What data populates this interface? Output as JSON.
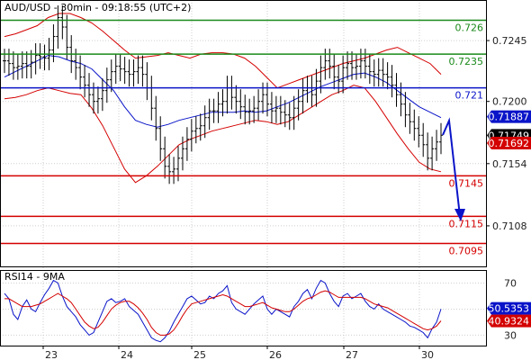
{
  "chart_data": [
    {
      "type": "candlestick",
      "title": "AUD/USD - 30min - 09:18:55 (UTC+2)",
      "ylim": [
        0.7078,
        0.7275
      ],
      "x_ticks": [
        "23",
        "24",
        "25",
        "26",
        "27",
        "30"
      ],
      "y_ticks": [
        "0.7245",
        "0.7200",
        "0.7154",
        "0.7108"
      ],
      "grid": true,
      "levels": [
        {
          "label": "0.726",
          "value": 0.726,
          "color": "#1a8a1a"
        },
        {
          "label": "0.7235",
          "value": 0.7235,
          "color": "#1a8a1a"
        },
        {
          "label": "0.721",
          "value": 0.721,
          "color": "#0a14c8"
        },
        {
          "label": "0.7145",
          "value": 0.7145,
          "color": "#d40000"
        },
        {
          "label": "0.7115",
          "value": 0.7115,
          "color": "#d40000"
        },
        {
          "label": "0.7095",
          "value": 0.7095,
          "color": "#d40000"
        }
      ],
      "price_tags": [
        {
          "label": "0.71887",
          "value": 0.71887,
          "color": "#0a14c8"
        },
        {
          "label": "0.71749",
          "value": 0.71749,
          "color": "#000000"
        },
        {
          "label": "0.71692",
          "value": 0.71692,
          "color": "#d40000"
        }
      ],
      "close": [
        0.723,
        0.7228,
        0.7225,
        0.7226,
        0.7228,
        0.7226,
        0.7229,
        0.7234,
        0.7233,
        0.7232,
        0.7238,
        0.7248,
        0.7262,
        0.7255,
        0.724,
        0.723,
        0.7225,
        0.7218,
        0.7212,
        0.7205,
        0.72,
        0.7202,
        0.7208,
        0.7216,
        0.7222,
        0.7226,
        0.7224,
        0.7222,
        0.722,
        0.7222,
        0.7225,
        0.722,
        0.721,
        0.7195,
        0.718,
        0.7165,
        0.7152,
        0.7148,
        0.715,
        0.7158,
        0.7165,
        0.7172,
        0.7178,
        0.718,
        0.7182,
        0.7188,
        0.7193,
        0.7193,
        0.7198,
        0.72,
        0.721,
        0.7203,
        0.72,
        0.7196,
        0.7192,
        0.7193,
        0.7195,
        0.72,
        0.7205,
        0.7198,
        0.7193,
        0.7195,
        0.7192,
        0.719,
        0.7188,
        0.7195,
        0.72,
        0.7208,
        0.721,
        0.7205,
        0.7215,
        0.7225,
        0.723,
        0.7226,
        0.7218,
        0.7215,
        0.7225,
        0.7228,
        0.7225,
        0.7226,
        0.723,
        0.7226,
        0.7222,
        0.722,
        0.7223,
        0.722,
        0.7218,
        0.7212,
        0.7205,
        0.7198,
        0.719,
        0.7185,
        0.718,
        0.7175,
        0.7168,
        0.7158,
        0.7165,
        0.717,
        0.7175
      ],
      "bollinger_upper": [
        0.7248,
        0.725,
        0.7253,
        0.7256,
        0.7262,
        0.7265,
        0.7265,
        0.7262,
        0.7258,
        0.7252,
        0.7245,
        0.7238,
        0.7232,
        0.7233,
        0.7234,
        0.7236,
        0.7234,
        0.7232,
        0.7235,
        0.7236,
        0.7236,
        0.7235,
        0.7232,
        0.7226,
        0.7218,
        0.721,
        0.7213,
        0.7216,
        0.7219,
        0.7222,
        0.7225,
        0.7228,
        0.723,
        0.7232,
        0.7235,
        0.7238,
        0.724,
        0.7236,
        0.7232,
        0.7228,
        0.722
      ],
      "bollinger_lower": [
        0.7202,
        0.7203,
        0.7205,
        0.7208,
        0.721,
        0.7208,
        0.7206,
        0.7205,
        0.7195,
        0.7182,
        0.7166,
        0.715,
        0.714,
        0.7145,
        0.7152,
        0.716,
        0.7168,
        0.7172,
        0.7175,
        0.7178,
        0.718,
        0.7182,
        0.7184,
        0.7186,
        0.7185,
        0.7183,
        0.7185,
        0.719,
        0.7195,
        0.72,
        0.7205,
        0.7208,
        0.7212,
        0.721,
        0.72,
        0.7188,
        0.7176,
        0.7165,
        0.7155,
        0.715,
        0.7148
      ],
      "ma": [
        0.7218,
        0.7222,
        0.7226,
        0.723,
        0.7234,
        0.7233,
        0.723,
        0.7228,
        0.7224,
        0.7216,
        0.7208,
        0.7196,
        0.7186,
        0.7183,
        0.7181,
        0.7183,
        0.7186,
        0.7188,
        0.719,
        0.7192,
        0.7192,
        0.7192,
        0.7193,
        0.7192,
        0.7193,
        0.7196,
        0.7199,
        0.7203,
        0.7207,
        0.7211,
        0.7214,
        0.7217,
        0.722,
        0.7221,
        0.7218,
        0.7214,
        0.7208,
        0.7202,
        0.7196,
        0.7192,
        0.7188
      ]
    },
    {
      "type": "line",
      "title": "RSI14 - 9MA",
      "ylim": [
        22,
        80
      ],
      "y_ticks": [
        "70",
        "50",
        "30"
      ],
      "value_tags": [
        {
          "label": "50.5353",
          "value": 50.5353,
          "color": "#0a14c8"
        },
        {
          "label": "40.9324",
          "value": 40.9324,
          "color": "#d40000"
        }
      ],
      "series": [
        {
          "values": [
            62,
            58,
            46,
            42,
            52,
            57,
            50,
            48,
            55,
            61,
            66,
            72,
            70,
            60,
            52,
            48,
            44,
            38,
            34,
            30,
            32,
            40,
            48,
            56,
            58,
            55,
            56,
            58,
            52,
            49,
            46,
            40,
            34,
            28,
            26,
            25,
            28,
            33,
            40,
            46,
            52,
            58,
            60,
            57,
            54,
            55,
            60,
            58,
            62,
            64,
            68,
            55,
            50,
            48,
            46,
            50,
            54,
            57,
            60,
            50,
            46,
            50,
            48,
            46,
            44,
            52,
            56,
            62,
            65,
            58,
            66,
            72,
            70,
            62,
            56,
            52,
            60,
            62,
            58,
            60,
            62,
            56,
            52,
            50,
            54,
            50,
            48,
            46,
            44,
            42,
            40,
            37,
            36,
            34,
            32,
            28,
            35,
            40,
            50
          ]
        },
        {
          "values": [
            58,
            58,
            56,
            54,
            52,
            52,
            52,
            53,
            54,
            56,
            58,
            60,
            62,
            60,
            58,
            55,
            50,
            45,
            40,
            37,
            35,
            36,
            40,
            45,
            50,
            53,
            55,
            56,
            56,
            54,
            51,
            47,
            42,
            36,
            32,
            30,
            30,
            31,
            34,
            39,
            45,
            50,
            54,
            55,
            56,
            57,
            58,
            59,
            60,
            61,
            60,
            58,
            56,
            54,
            52,
            52,
            53,
            54,
            55,
            53,
            51,
            50,
            49,
            48,
            48,
            50,
            53,
            56,
            58,
            59,
            61,
            63,
            64,
            63,
            61,
            59,
            59,
            59,
            59,
            59,
            59,
            58,
            56,
            54,
            53,
            52,
            51,
            49,
            47,
            45,
            43,
            41,
            39,
            37,
            35,
            34,
            35,
            37,
            41
          ]
        }
      ]
    }
  ]
}
